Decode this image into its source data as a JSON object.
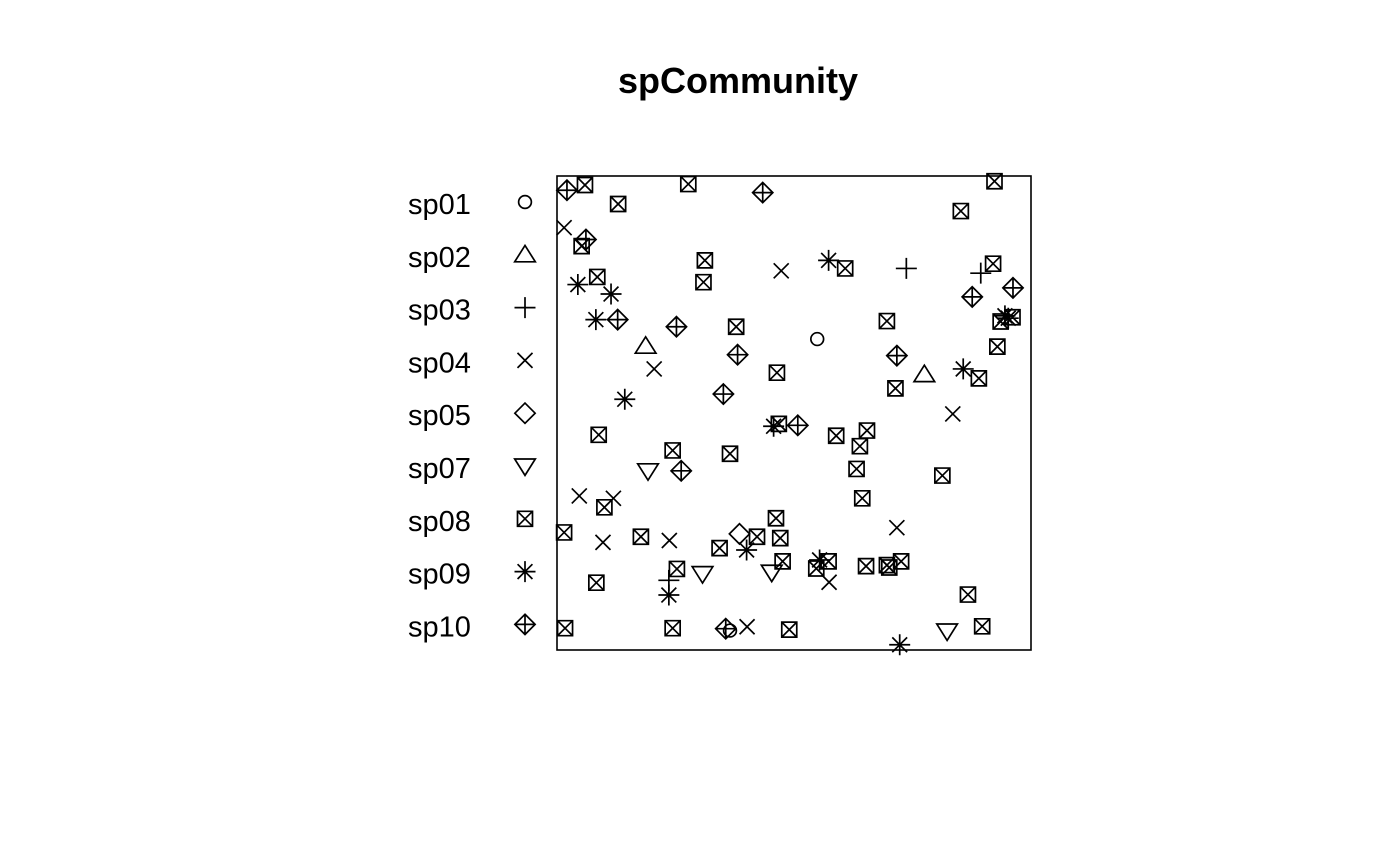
{
  "chart_data": {
    "type": "scatter",
    "title": "spCommunity",
    "xlim": [
      0,
      1
    ],
    "ylim": [
      0,
      1
    ],
    "axes": false,
    "box": true,
    "grid": false,
    "legend_position": "left",
    "legend": [
      {
        "name": "sp01",
        "symbol": "circle"
      },
      {
        "name": "sp02",
        "symbol": "triangle-up"
      },
      {
        "name": "sp03",
        "symbol": "plus"
      },
      {
        "name": "sp04",
        "symbol": "cross"
      },
      {
        "name": "sp05",
        "symbol": "diamond"
      },
      {
        "name": "sp07",
        "symbol": "triangle-down"
      },
      {
        "name": "sp08",
        "symbol": "square-cross"
      },
      {
        "name": "sp09",
        "symbol": "asterisk"
      },
      {
        "name": "sp10",
        "symbol": "diamond-plus"
      }
    ],
    "series": [
      {
        "name": "sp01",
        "symbol": "circle",
        "points": [
          [
            0.549,
            0.656
          ],
          [
            0.365,
            0.041
          ]
        ]
      },
      {
        "name": "sp02",
        "symbol": "triangle-up",
        "points": [
          [
            0.187,
            0.641
          ],
          [
            0.775,
            0.581
          ]
        ]
      },
      {
        "name": "sp03",
        "symbol": "plus",
        "points": [
          [
            0.737,
            0.805
          ],
          [
            0.894,
            0.795
          ],
          [
            0.236,
            0.147
          ]
        ]
      },
      {
        "name": "sp04",
        "symbol": "cross",
        "points": [
          [
            0.015,
            0.891
          ],
          [
            0.473,
            0.8
          ],
          [
            0.205,
            0.593
          ],
          [
            0.835,
            0.498
          ],
          [
            0.047,
            0.325
          ],
          [
            0.119,
            0.32
          ],
          [
            0.097,
            0.227
          ],
          [
            0.237,
            0.231
          ],
          [
            0.717,
            0.258
          ],
          [
            0.574,
            0.143
          ],
          [
            0.401,
            0.049
          ]
        ]
      },
      {
        "name": "sp05",
        "symbol": "diamond",
        "points": [
          [
            0.385,
            0.245
          ]
        ]
      },
      {
        "name": "sp07",
        "symbol": "triangle-down",
        "points": [
          [
            0.192,
            0.378
          ],
          [
            0.307,
            0.161
          ],
          [
            0.453,
            0.164
          ],
          [
            0.823,
            0.04
          ]
        ]
      },
      {
        "name": "sp08",
        "symbol": "square-cross",
        "points": [
          [
            0.059,
            0.981
          ],
          [
            0.277,
            0.983
          ],
          [
            0.923,
            0.989
          ],
          [
            0.129,
            0.941
          ],
          [
            0.852,
            0.926
          ],
          [
            0.052,
            0.852
          ],
          [
            0.312,
            0.822
          ],
          [
            0.92,
            0.815
          ],
          [
            0.085,
            0.787
          ],
          [
            0.309,
            0.776
          ],
          [
            0.608,
            0.805
          ],
          [
            0.378,
            0.682
          ],
          [
            0.696,
            0.694
          ],
          [
            0.936,
            0.693
          ],
          [
            0.961,
            0.702
          ],
          [
            0.929,
            0.64
          ],
          [
            0.464,
            0.585
          ],
          [
            0.89,
            0.573
          ],
          [
            0.714,
            0.552
          ],
          [
            0.088,
            0.454
          ],
          [
            0.468,
            0.477
          ],
          [
            0.589,
            0.452
          ],
          [
            0.654,
            0.463
          ],
          [
            0.639,
            0.43
          ],
          [
            0.244,
            0.421
          ],
          [
            0.365,
            0.414
          ],
          [
            0.632,
            0.382
          ],
          [
            0.813,
            0.368
          ],
          [
            0.644,
            0.32
          ],
          [
            0.1,
            0.301
          ],
          [
            0.015,
            0.248
          ],
          [
            0.177,
            0.239
          ],
          [
            0.462,
            0.278
          ],
          [
            0.422,
            0.239
          ],
          [
            0.471,
            0.236
          ],
          [
            0.343,
            0.215
          ],
          [
            0.476,
            0.187
          ],
          [
            0.573,
            0.187
          ],
          [
            0.547,
            0.172
          ],
          [
            0.652,
            0.177
          ],
          [
            0.701,
            0.174
          ],
          [
            0.696,
            0.179
          ],
          [
            0.726,
            0.187
          ],
          [
            0.253,
            0.171
          ],
          [
            0.083,
            0.142
          ],
          [
            0.867,
            0.117
          ],
          [
            0.017,
            0.046
          ],
          [
            0.244,
            0.046
          ],
          [
            0.49,
            0.043
          ],
          [
            0.897,
            0.05
          ]
        ]
      },
      {
        "name": "sp09",
        "symbol": "asterisk",
        "points": [
          [
            0.044,
            0.771
          ],
          [
            0.114,
            0.751
          ],
          [
            0.082,
            0.697
          ],
          [
            0.143,
            0.529
          ],
          [
            0.573,
            0.822
          ],
          [
            0.857,
            0.593
          ],
          [
            0.945,
            0.705
          ],
          [
            0.952,
            0.7
          ],
          [
            0.457,
            0.472
          ],
          [
            0.4,
            0.211
          ],
          [
            0.554,
            0.19
          ],
          [
            0.236,
            0.116
          ],
          [
            0.723,
            0.011
          ]
        ]
      },
      {
        "name": "sp10",
        "symbol": "diamond-plus",
        "points": [
          [
            0.021,
            0.97
          ],
          [
            0.434,
            0.965
          ],
          [
            0.061,
            0.866
          ],
          [
            0.128,
            0.697
          ],
          [
            0.252,
            0.682
          ],
          [
            0.381,
            0.623
          ],
          [
            0.876,
            0.745
          ],
          [
            0.962,
            0.764
          ],
          [
            0.717,
            0.621
          ],
          [
            0.351,
            0.54
          ],
          [
            0.508,
            0.474
          ],
          [
            0.262,
            0.378
          ],
          [
            0.356,
            0.045
          ]
        ]
      }
    ]
  }
}
